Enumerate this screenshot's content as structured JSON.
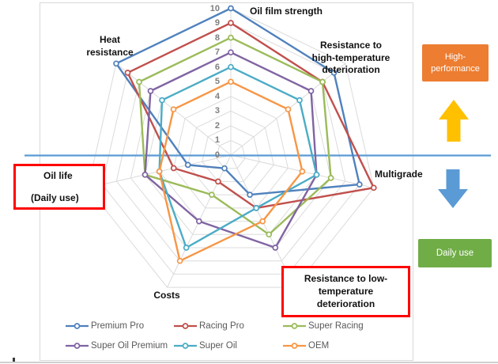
{
  "chart_data": {
    "type": "radar",
    "title": "",
    "axes": [
      "Oil film strength",
      "Resistance to high-temperature deterioration",
      "Multigrade",
      "Resistance to low-temperature deterioration",
      "Costs",
      "Oil life (Daily use)",
      "Heat resistance"
    ],
    "scale": {
      "min": 0,
      "max": 10,
      "step": 1,
      "tick_labels": [
        "0",
        "1",
        "2",
        "3",
        "4",
        "5",
        "6",
        "7",
        "8",
        "9",
        "10"
      ]
    },
    "grid": true,
    "legend_position": "bottom",
    "series": [
      {
        "name": "Premium Pro",
        "color": "#4F81BD",
        "values": [
          10,
          9,
          9,
          3,
          1,
          3,
          10
        ]
      },
      {
        "name": "Racing Pro",
        "color": "#C0504D",
        "values": [
          9,
          8,
          10,
          4,
          2,
          4,
          9
        ]
      },
      {
        "name": "Super Racing",
        "color": "#9BBB59",
        "values": [
          8,
          8,
          7,
          6,
          3,
          6,
          8
        ]
      },
      {
        "name": "Super Oil Premium",
        "color": "#8064A2",
        "values": [
          7,
          7,
          6,
          7,
          5,
          6,
          7
        ]
      },
      {
        "name": "Super Oil",
        "color": "#4BACC6",
        "values": [
          6,
          6,
          6,
          4,
          7,
          5,
          6
        ]
      },
      {
        "name": "OEM",
        "color": "#F79646",
        "values": [
          5,
          5,
          5,
          5,
          8,
          5,
          5
        ]
      }
    ]
  },
  "axis_labels": {
    "oil_film": "Oil film strength",
    "heat": "Heat\nresistance",
    "high_temp": "Resistance to\nhigh-temperature\ndeterioration",
    "multigrade": "Multigrade",
    "costs": "Costs"
  },
  "callouts": {
    "oil_life": {
      "line1": "Oil life",
      "line2": "(Daily use)",
      "border_color": "#FF0000"
    },
    "low_temp": {
      "text": "Resistance to low-\ntemperature\ndeterioration",
      "border_color": "#FF0000"
    }
  },
  "side_panel": {
    "high_performance_label": "High-\nperformance",
    "high_performance_bg": "#ED7D31",
    "daily_use_label": "Daily use",
    "daily_use_bg": "#70AD47",
    "up_arrow_color": "#FFC000",
    "down_arrow_color": "#5B9BD5"
  },
  "separator_line_color": "#5B9BD5",
  "grid_color": "#DBDBDB"
}
